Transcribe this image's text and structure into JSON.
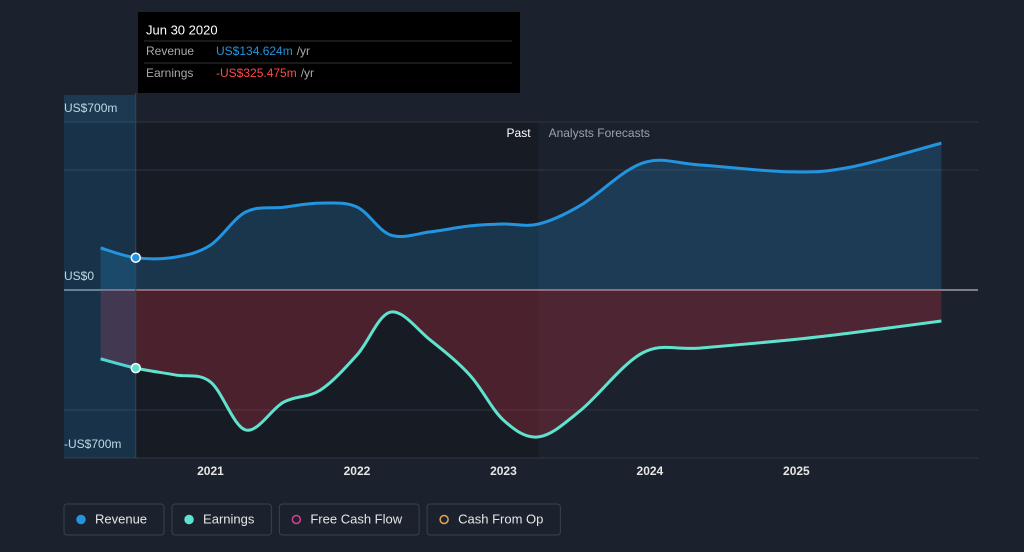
{
  "chart_data": {
    "type": "line",
    "x": [
      2020.25,
      2020.49,
      2020.76,
      2021,
      2021.24,
      2021.5,
      2021.75,
      2022,
      2022.23,
      2022.5,
      2022.77,
      2023,
      2023.24,
      2023.53,
      2023.95,
      2024.34,
      2024.96,
      2025.37,
      2025.99
    ],
    "series": [
      {
        "name": "Revenue",
        "color": "#2394df",
        "values": [
          175,
          134.624,
          137,
          187,
          325,
          345,
          362,
          346,
          229,
          242,
          267,
          275,
          275,
          354,
          529,
          521,
          492,
          512,
          612
        ]
      },
      {
        "name": "Earnings",
        "color": "#5fe3cf",
        "values": [
          -287,
          -325.475,
          -354,
          -383,
          -583,
          -467,
          -417,
          -271,
          -92,
          -208,
          -354,
          -542,
          -612,
          -500,
          -262,
          -242,
          -208,
          -179,
          -129
        ]
      }
    ],
    "legend_extra": [
      {
        "name": "Free Cash Flow",
        "color": "#d6408e"
      },
      {
        "name": "Cash From Op",
        "color": "#e3a452"
      }
    ],
    "xlim": [
      2020,
      2026.24
    ],
    "xticks": [
      2021,
      2022,
      2023,
      2024,
      2025
    ],
    "ylim": [
      -700,
      700
    ],
    "yticks": [
      {
        "value": 700,
        "label": "US$700m"
      },
      {
        "value": 0,
        "label": "US$0"
      },
      {
        "value": -700,
        "label": "-US$700m"
      }
    ],
    "gridlines": [
      500,
      -500
    ],
    "forecast_start": 2023.24,
    "past_label": "Past",
    "forecast_label": "Analysts Forecasts",
    "tooltip": {
      "x": 2020.49,
      "index": 1,
      "date": "Jun 30 2020",
      "rows": [
        {
          "label": "Revenue",
          "value": "US$134.624m",
          "unit": "/yr"
        },
        {
          "label": "Earnings",
          "value": "-US$325.475m",
          "unit": "/yr"
        }
      ]
    }
  }
}
